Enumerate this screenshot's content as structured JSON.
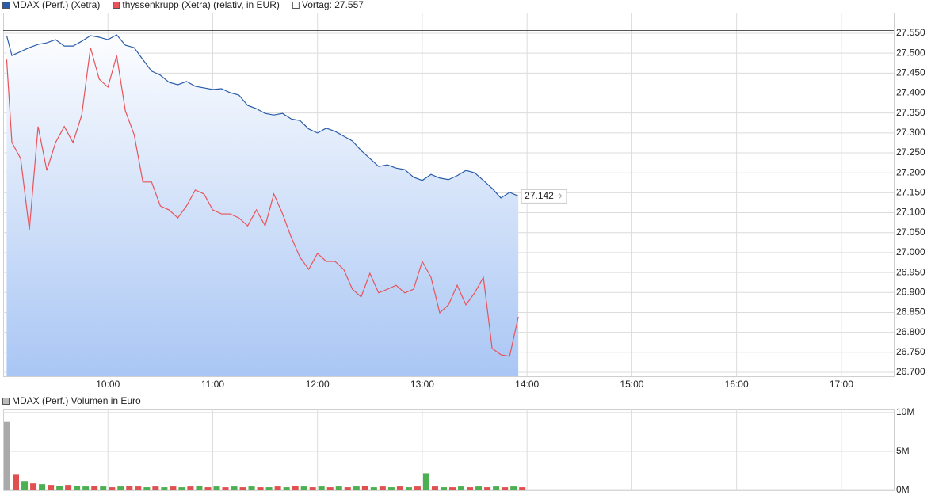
{
  "chart_data": [
    {
      "type": "line",
      "x": [
        "09:02",
        "09:05",
        "09:10",
        "09:15",
        "09:20",
        "09:25",
        "09:30",
        "09:35",
        "09:40",
        "09:45",
        "09:50",
        "09:55",
        "10:00",
        "10:05",
        "10:10",
        "10:15",
        "10:20",
        "10:25",
        "10:30",
        "10:35",
        "10:40",
        "10:45",
        "10:50",
        "10:55",
        "11:00",
        "11:05",
        "11:10",
        "11:15",
        "11:20",
        "11:25",
        "11:30",
        "11:35",
        "11:40",
        "11:45",
        "11:50",
        "11:55",
        "12:00",
        "12:05",
        "12:10",
        "12:15",
        "12:20",
        "12:25",
        "12:30",
        "12:35",
        "12:40",
        "12:45",
        "12:50",
        "12:55",
        "13:00",
        "13:05",
        "13:10",
        "13:15",
        "13:20",
        "13:25",
        "13:30",
        "13:35",
        "13:40",
        "13:45",
        "13:50",
        "13:55"
      ],
      "series": [
        {
          "name": "MDAX (Perf.) (Xetra)",
          "color": "#2a5caa",
          "fill": true,
          "values": [
            27.544,
            27.494,
            27.504,
            27.514,
            27.522,
            27.526,
            27.534,
            27.518,
            27.518,
            27.53,
            27.544,
            27.54,
            27.534,
            27.546,
            27.52,
            27.514,
            27.484,
            27.455,
            27.445,
            27.427,
            27.421,
            27.429,
            27.417,
            27.413,
            27.409,
            27.411,
            27.401,
            27.395,
            27.369,
            27.361,
            27.349,
            27.345,
            27.349,
            27.335,
            27.331,
            27.31,
            27.3,
            27.312,
            27.304,
            27.292,
            27.28,
            27.256,
            27.236,
            27.216,
            27.22,
            27.212,
            27.208,
            27.189,
            27.181,
            27.196,
            27.187,
            27.183,
            27.193,
            27.206,
            27.2,
            27.181,
            27.161,
            27.137,
            27.151,
            27.142
          ]
        },
        {
          "name": "thyssenkrupp (Xetra) (relativ, in EUR)",
          "color": "#e8545a",
          "fill": false,
          "values": [
            27.484,
            27.276,
            27.236,
            27.057,
            27.316,
            27.206,
            27.276,
            27.316,
            27.276,
            27.345,
            27.514,
            27.435,
            27.415,
            27.494,
            27.355,
            27.296,
            27.177,
            27.177,
            27.117,
            27.107,
            27.087,
            27.117,
            27.157,
            27.147,
            27.107,
            27.097,
            27.097,
            27.087,
            27.067,
            27.107,
            27.067,
            27.147,
            27.097,
            27.038,
            26.988,
            26.958,
            26.998,
            26.978,
            26.978,
            26.958,
            26.908,
            26.889,
            26.948,
            26.899,
            26.908,
            26.918,
            26.899,
            26.908,
            26.978,
            26.938,
            26.849,
            26.869,
            26.918,
            26.869,
            26.899,
            26.938,
            26.76,
            26.744,
            26.74,
            26.839
          ]
        }
      ],
      "reference_line": {
        "value": 27.557,
        "label": "Vortag: 27.557",
        "color": "#ffffff"
      },
      "last_label": {
        "value": 27.142,
        "label": "27.142"
      },
      "xlim": [
        "09:00",
        "17:30"
      ],
      "xticks": [
        "10:00",
        "11:00",
        "12:00",
        "13:00",
        "14:00",
        "15:00",
        "16:00",
        "17:00"
      ],
      "ylim": [
        26.69,
        27.6016
      ],
      "yticks": [
        {
          "value": 26.7,
          "label": "26.700"
        },
        {
          "value": 26.75,
          "label": "26.750"
        },
        {
          "value": 26.8,
          "label": "26.800"
        },
        {
          "value": 26.85,
          "label": "26.850"
        },
        {
          "value": 26.9,
          "label": "26.900"
        },
        {
          "value": 26.95,
          "label": "26.950"
        },
        {
          "value": 27.0,
          "label": "27.000"
        },
        {
          "value": 27.05,
          "label": "27.050"
        },
        {
          "value": 27.1,
          "label": "27.100"
        },
        {
          "value": 27.15,
          "label": "27.150"
        },
        {
          "value": 27.2,
          "label": "27.200"
        },
        {
          "value": 27.25,
          "label": "27.250"
        },
        {
          "value": 27.3,
          "label": "27.300"
        },
        {
          "value": 27.35,
          "label": "27.350"
        },
        {
          "value": 27.4,
          "label": "27.400"
        },
        {
          "value": 27.45,
          "label": "27.450"
        },
        {
          "value": 27.5,
          "label": "27.500"
        },
        {
          "value": 27.55,
          "label": "27.550"
        }
      ],
      "grid": true
    },
    {
      "type": "bar",
      "title": "MDAX (Perf.) Volumen in Euro",
      "legend_color": "#bbbbbb",
      "x": [
        "09:00",
        "09:05",
        "09:10",
        "09:15",
        "09:20",
        "09:25",
        "09:30",
        "09:35",
        "09:40",
        "09:45",
        "09:50",
        "09:55",
        "10:00",
        "10:05",
        "10:10",
        "10:15",
        "10:20",
        "10:25",
        "10:30",
        "10:35",
        "10:40",
        "10:45",
        "10:50",
        "10:55",
        "11:00",
        "11:05",
        "11:10",
        "11:15",
        "11:20",
        "11:25",
        "11:30",
        "11:35",
        "11:40",
        "11:45",
        "11:50",
        "11:55",
        "12:00",
        "12:05",
        "12:10",
        "12:15",
        "12:20",
        "12:25",
        "12:30",
        "12:35",
        "12:40",
        "12:45",
        "12:50",
        "12:55",
        "13:00",
        "13:05",
        "13:10",
        "13:15",
        "13:20",
        "13:25",
        "13:30",
        "13:35",
        "13:40",
        "13:45",
        "13:50",
        "13:55"
      ],
      "values": [
        8800000,
        2000000,
        1200000,
        900000,
        800000,
        700000,
        600000,
        700000,
        600000,
        500000,
        600000,
        500000,
        400000,
        500000,
        600000,
        500000,
        400000,
        500000,
        400000,
        500000,
        400000,
        500000,
        600000,
        400000,
        500000,
        400000,
        500000,
        400000,
        500000,
        400000,
        400000,
        500000,
        400000,
        600000,
        500000,
        400000,
        500000,
        400000,
        500000,
        400000,
        500000,
        600000,
        400000,
        500000,
        400000,
        500000,
        400000,
        500000,
        2200000,
        500000,
        400000,
        400000,
        500000,
        400000,
        500000,
        400000,
        500000,
        400000,
        500000,
        400000
      ],
      "colors": [
        "#aaaaaa",
        "#e05050",
        "#4caf50",
        "#e05050",
        "#4caf50",
        "#e05050",
        "#4caf50",
        "#e05050",
        "#4caf50",
        "#4caf50",
        "#e05050",
        "#4caf50",
        "#e05050",
        "#4caf50",
        "#e05050",
        "#e05050",
        "#4caf50",
        "#e05050",
        "#4caf50",
        "#e05050",
        "#4caf50",
        "#e05050",
        "#4caf50",
        "#e05050",
        "#4caf50",
        "#e05050",
        "#4caf50",
        "#e05050",
        "#4caf50",
        "#e05050",
        "#4caf50",
        "#e05050",
        "#4caf50",
        "#e05050",
        "#4caf50",
        "#e05050",
        "#4caf50",
        "#e05050",
        "#4caf50",
        "#e05050",
        "#4caf50",
        "#e05050",
        "#4caf50",
        "#e05050",
        "#4caf50",
        "#e05050",
        "#4caf50",
        "#e05050",
        "#4caf50",
        "#e05050",
        "#4caf50",
        "#e05050",
        "#4caf50",
        "#e05050",
        "#4caf50",
        "#e05050",
        "#4caf50",
        "#e05050",
        "#4caf50",
        "#e05050"
      ],
      "xlim": [
        "09:00",
        "17:30"
      ],
      "xticks": [
        "10:00",
        "11:00",
        "12:00",
        "13:00",
        "14:00",
        "15:00",
        "16:00",
        "17:00"
      ],
      "ylim": [
        0,
        10400000
      ],
      "yticks": [
        {
          "value": 0,
          "label": "0M"
        },
        {
          "value": 5000000,
          "label": "5M"
        },
        {
          "value": 10000000,
          "label": "10M"
        }
      ],
      "grid": true
    }
  ]
}
